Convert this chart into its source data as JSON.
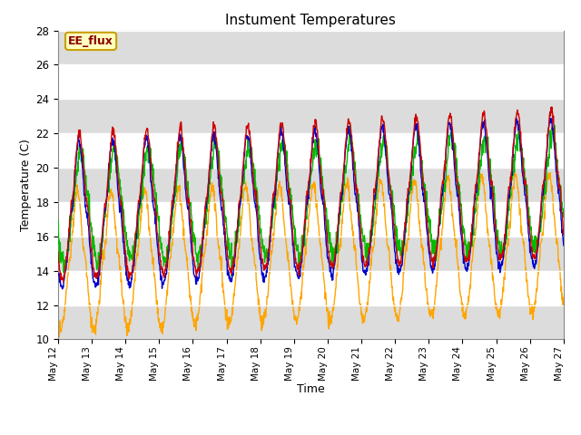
{
  "title": "Instument Temperatures",
  "xlabel": "Time",
  "ylabel": "Temperature (C)",
  "ylim": [
    10,
    28
  ],
  "annotation_text": "EE_flux",
  "annotation_color": "#8B0000",
  "annotation_bg": "#FFFFC0",
  "annotation_border": "#C8A000",
  "background_color": "#ffffff",
  "grid_band_color": "#DCDCDC",
  "colors": {
    "li75_t": "#CC0000",
    "li77_temp": "#0000CC",
    "SonicT": "#00BB00",
    "AirT": "#FFA500"
  },
  "x_tick_labels": [
    "May 12",
    "May 13",
    "May 14",
    "May 15",
    "May 16",
    "May 17",
    "May 18",
    "May 19",
    "May 20",
    "May 21",
    "May 22",
    "May 23",
    "May 24",
    "May 25",
    "May 26",
    "May 27"
  ],
  "x_tick_positions": [
    0,
    1,
    2,
    3,
    4,
    5,
    6,
    7,
    8,
    9,
    10,
    11,
    12,
    13,
    14,
    15
  ],
  "yticks": [
    10,
    12,
    14,
    16,
    18,
    20,
    22,
    24,
    26,
    28
  ]
}
